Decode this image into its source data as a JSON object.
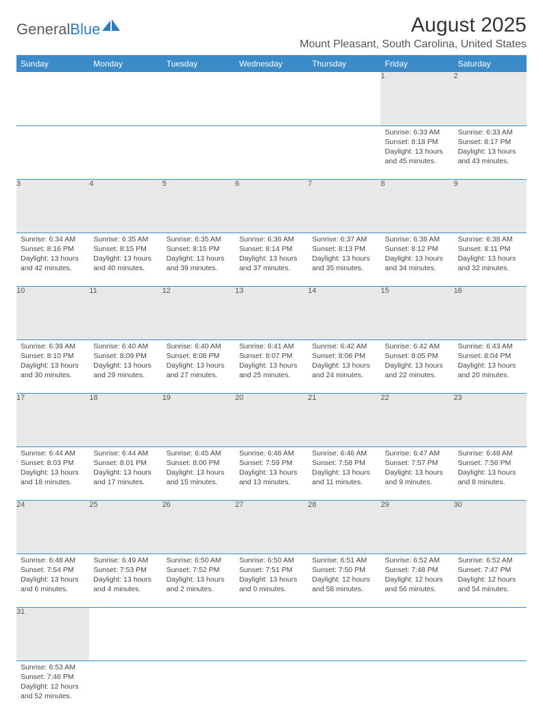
{
  "logo": {
    "part1": "General",
    "part2": "Blue",
    "shape_color": "#2e7cc0"
  },
  "header": {
    "month_title": "August 2025",
    "location": "Mount Pleasant, South Carolina, United States"
  },
  "colors": {
    "header_bg": "#3b8bc8",
    "header_fg": "#ffffff",
    "daynum_bg": "#e8e8e8",
    "row_divider": "#3b8bc8"
  },
  "weekdays": [
    "Sunday",
    "Monday",
    "Tuesday",
    "Wednesday",
    "Thursday",
    "Friday",
    "Saturday"
  ],
  "weeks": [
    [
      null,
      null,
      null,
      null,
      null,
      {
        "d": "1",
        "sr": "6:33 AM",
        "ss": "8:18 PM",
        "dl": "13 hours and 45 minutes."
      },
      {
        "d": "2",
        "sr": "6:33 AM",
        "ss": "8:17 PM",
        "dl": "13 hours and 43 minutes."
      }
    ],
    [
      {
        "d": "3",
        "sr": "6:34 AM",
        "ss": "8:16 PM",
        "dl": "13 hours and 42 minutes."
      },
      {
        "d": "4",
        "sr": "6:35 AM",
        "ss": "8:15 PM",
        "dl": "13 hours and 40 minutes."
      },
      {
        "d": "5",
        "sr": "6:35 AM",
        "ss": "8:15 PM",
        "dl": "13 hours and 39 minutes."
      },
      {
        "d": "6",
        "sr": "6:36 AM",
        "ss": "8:14 PM",
        "dl": "13 hours and 37 minutes."
      },
      {
        "d": "7",
        "sr": "6:37 AM",
        "ss": "8:13 PM",
        "dl": "13 hours and 35 minutes."
      },
      {
        "d": "8",
        "sr": "6:38 AM",
        "ss": "8:12 PM",
        "dl": "13 hours and 34 minutes."
      },
      {
        "d": "9",
        "sr": "6:38 AM",
        "ss": "8:11 PM",
        "dl": "13 hours and 32 minutes."
      }
    ],
    [
      {
        "d": "10",
        "sr": "6:39 AM",
        "ss": "8:10 PM",
        "dl": "13 hours and 30 minutes."
      },
      {
        "d": "11",
        "sr": "6:40 AM",
        "ss": "8:09 PM",
        "dl": "13 hours and 29 minutes."
      },
      {
        "d": "12",
        "sr": "6:40 AM",
        "ss": "8:08 PM",
        "dl": "13 hours and 27 minutes."
      },
      {
        "d": "13",
        "sr": "6:41 AM",
        "ss": "8:07 PM",
        "dl": "13 hours and 25 minutes."
      },
      {
        "d": "14",
        "sr": "6:42 AM",
        "ss": "8:06 PM",
        "dl": "13 hours and 24 minutes."
      },
      {
        "d": "15",
        "sr": "6:42 AM",
        "ss": "8:05 PM",
        "dl": "13 hours and 22 minutes."
      },
      {
        "d": "16",
        "sr": "6:43 AM",
        "ss": "8:04 PM",
        "dl": "13 hours and 20 minutes."
      }
    ],
    [
      {
        "d": "17",
        "sr": "6:44 AM",
        "ss": "8:03 PM",
        "dl": "13 hours and 18 minutes."
      },
      {
        "d": "18",
        "sr": "6:44 AM",
        "ss": "8:01 PM",
        "dl": "13 hours and 17 minutes."
      },
      {
        "d": "19",
        "sr": "6:45 AM",
        "ss": "8:00 PM",
        "dl": "13 hours and 15 minutes."
      },
      {
        "d": "20",
        "sr": "6:46 AM",
        "ss": "7:59 PM",
        "dl": "13 hours and 13 minutes."
      },
      {
        "d": "21",
        "sr": "6:46 AM",
        "ss": "7:58 PM",
        "dl": "13 hours and 11 minutes."
      },
      {
        "d": "22",
        "sr": "6:47 AM",
        "ss": "7:57 PM",
        "dl": "13 hours and 9 minutes."
      },
      {
        "d": "23",
        "sr": "6:48 AM",
        "ss": "7:56 PM",
        "dl": "13 hours and 8 minutes."
      }
    ],
    [
      {
        "d": "24",
        "sr": "6:48 AM",
        "ss": "7:54 PM",
        "dl": "13 hours and 6 minutes."
      },
      {
        "d": "25",
        "sr": "6:49 AM",
        "ss": "7:53 PM",
        "dl": "13 hours and 4 minutes."
      },
      {
        "d": "26",
        "sr": "6:50 AM",
        "ss": "7:52 PM",
        "dl": "13 hours and 2 minutes."
      },
      {
        "d": "27",
        "sr": "6:50 AM",
        "ss": "7:51 PM",
        "dl": "13 hours and 0 minutes."
      },
      {
        "d": "28",
        "sr": "6:51 AM",
        "ss": "7:50 PM",
        "dl": "12 hours and 58 minutes."
      },
      {
        "d": "29",
        "sr": "6:52 AM",
        "ss": "7:48 PM",
        "dl": "12 hours and 56 minutes."
      },
      {
        "d": "30",
        "sr": "6:52 AM",
        "ss": "7:47 PM",
        "dl": "12 hours and 54 minutes."
      }
    ],
    [
      {
        "d": "31",
        "sr": "6:53 AM",
        "ss": "7:46 PM",
        "dl": "12 hours and 52 minutes."
      },
      null,
      null,
      null,
      null,
      null,
      null
    ]
  ],
  "labels": {
    "sunrise": "Sunrise: ",
    "sunset": "Sunset: ",
    "daylight": "Daylight: "
  }
}
